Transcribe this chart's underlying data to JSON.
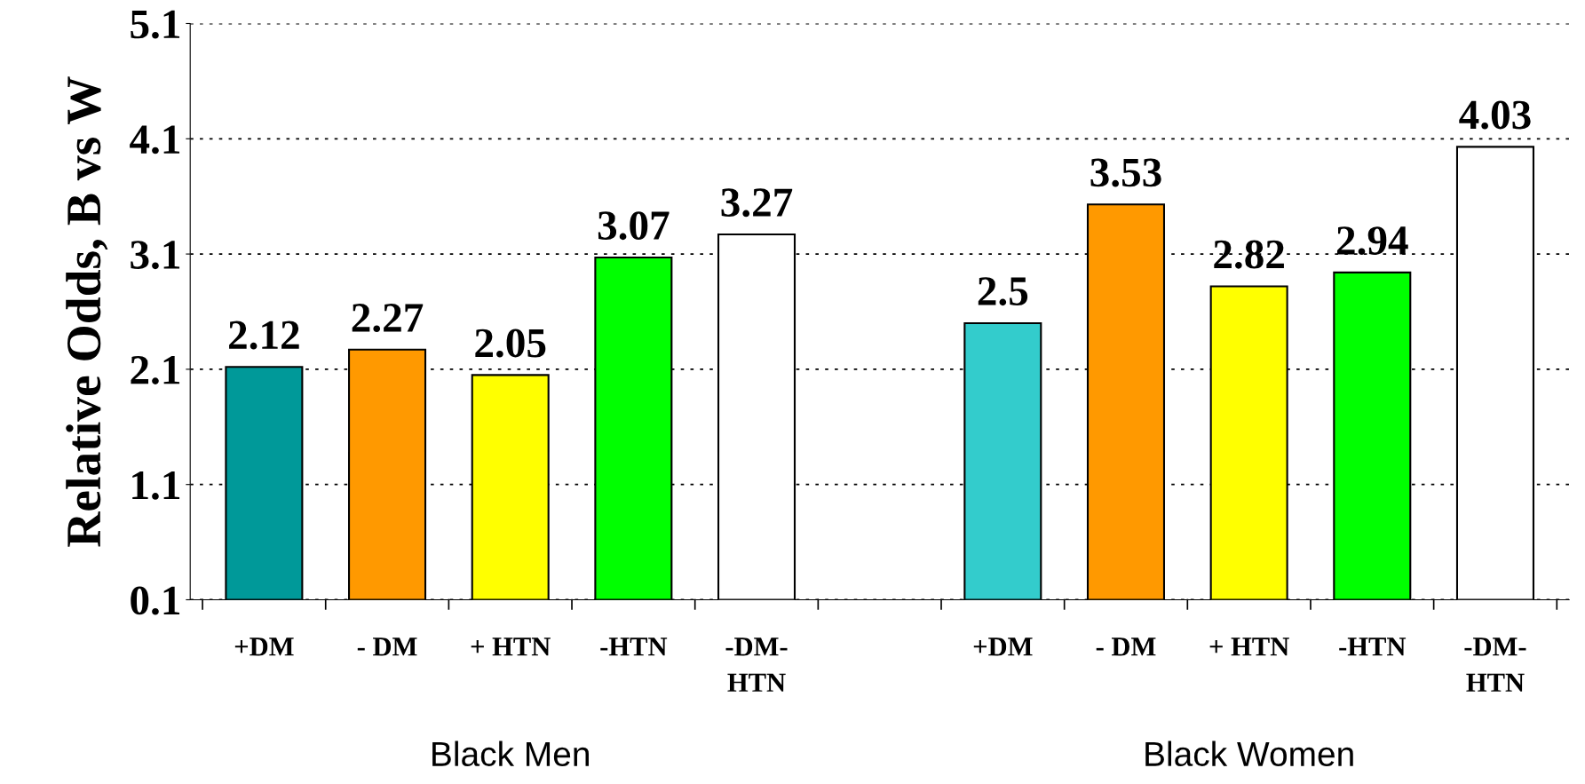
{
  "chart_data": {
    "type": "bar",
    "ylabel": "Relative Odds, B vs W",
    "categories": [
      "+DM",
      "- DM",
      "+ HTN",
      "-HTN",
      "-DM-\nHTN",
      null,
      "+DM",
      "- DM",
      "+ HTN",
      "-HTN",
      "-DM-\nHTN"
    ],
    "values": [
      2.12,
      2.27,
      2.05,
      3.07,
      3.27,
      null,
      2.5,
      3.53,
      2.82,
      2.94,
      4.03
    ],
    "colors": [
      "#009999",
      "#ff9900",
      "#ffff00",
      "#00ff00",
      "#ffffff",
      "#ffffff",
      "#33cccc",
      "#ff9900",
      "#ffff00",
      "#00ff00",
      "#ffffff"
    ],
    "ylim": [
      0.1,
      5.1
    ],
    "yticks": [
      0.1,
      1.1,
      2.1,
      3.1,
      4.1,
      5.1
    ],
    "grid": "y",
    "data_labels": true,
    "annotations": [
      "Black Men",
      "Black Women"
    ]
  }
}
